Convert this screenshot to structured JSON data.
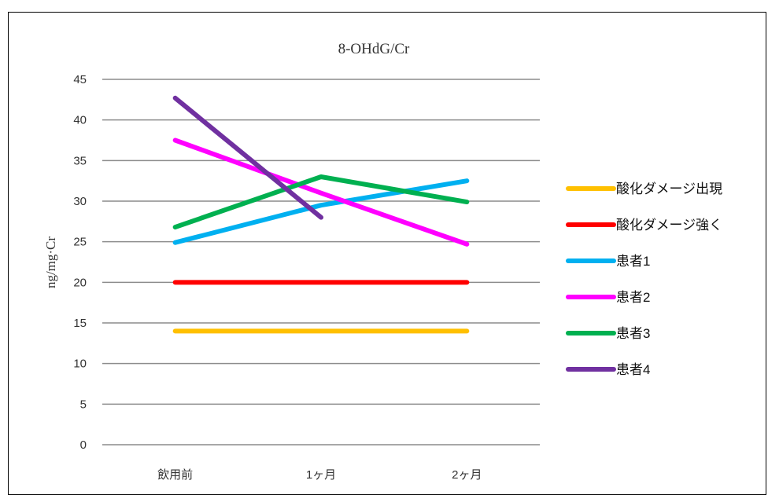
{
  "chart_data": {
    "type": "line",
    "title": "8-OHdG/Cr",
    "ylabel": "ng/mg·Cr",
    "xlabel": "",
    "categories": [
      "飲用前",
      "1ヶ月",
      "2ヶ月"
    ],
    "ylim": [
      0,
      45
    ],
    "yticks": [
      0,
      5,
      10,
      15,
      20,
      25,
      30,
      35,
      40,
      45
    ],
    "grid": true,
    "legend": "right",
    "series": [
      {
        "name": "酸化ダメージ出現",
        "color": "#FFC000",
        "values": [
          14,
          14,
          14
        ]
      },
      {
        "name": "酸化ダメージ強く",
        "color": "#FF0000",
        "values": [
          20,
          20,
          20
        ]
      },
      {
        "name": "患者1",
        "color": "#00B0F0",
        "values": [
          24.9,
          29.5,
          32.5
        ]
      },
      {
        "name": "患者2",
        "color": "#FF00FF",
        "values": [
          37.5,
          31,
          24.7
        ]
      },
      {
        "name": "患者3",
        "color": "#00B050",
        "values": [
          26.8,
          33,
          29.9
        ]
      },
      {
        "name": "患者4",
        "color": "#7030A0",
        "values": [
          42.7,
          28,
          null
        ]
      }
    ]
  }
}
